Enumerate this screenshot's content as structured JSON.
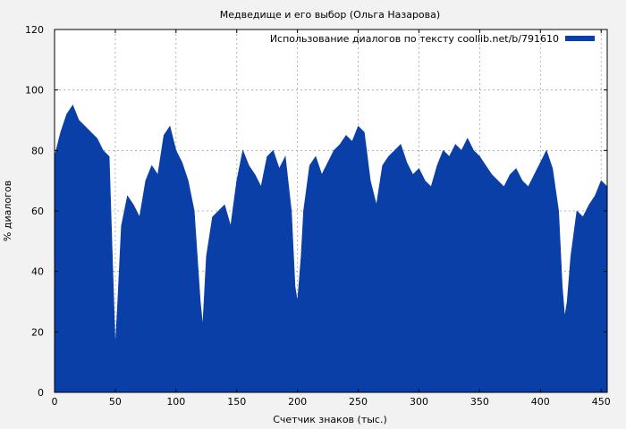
{
  "chart_data": {
    "type": "area",
    "title": "Медведище и его выбор (Ольга Назарова)",
    "xlabel": "Счетчик знаков (тыс.)",
    "ylabel": "% диалогов",
    "xlim": [
      0,
      455
    ],
    "ylim": [
      0,
      120
    ],
    "xticks": [
      0,
      50,
      100,
      150,
      200,
      250,
      300,
      350,
      400,
      450
    ],
    "yticks": [
      0,
      20,
      40,
      60,
      80,
      100,
      120
    ],
    "grid": true,
    "legend_position": "top-right",
    "series": [
      {
        "name": "Использование диалогов по тексту coollib.net/b/791610",
        "color": "#0a3fa8",
        "x": [
          0,
          5,
          10,
          15,
          20,
          25,
          30,
          35,
          40,
          45,
          48,
          50,
          52,
          55,
          60,
          65,
          70,
          75,
          80,
          85,
          90,
          95,
          100,
          105,
          110,
          115,
          120,
          122,
          125,
          130,
          135,
          140,
          145,
          150,
          155,
          160,
          165,
          170,
          175,
          180,
          185,
          190,
          195,
          198,
          200,
          203,
          205,
          210,
          215,
          220,
          225,
          230,
          235,
          240,
          245,
          250,
          255,
          260,
          265,
          270,
          275,
          280,
          285,
          290,
          295,
          300,
          305,
          310,
          315,
          320,
          325,
          330,
          335,
          340,
          345,
          350,
          355,
          360,
          365,
          370,
          375,
          380,
          385,
          390,
          395,
          400,
          405,
          410,
          415,
          418,
          420,
          422,
          425,
          430,
          435,
          440,
          445,
          450,
          455
        ],
        "y": [
          78,
          86,
          92,
          95,
          90,
          88,
          86,
          84,
          80,
          78,
          40,
          15,
          30,
          55,
          65,
          62,
          58,
          70,
          75,
          72,
          85,
          88,
          80,
          76,
          70,
          60,
          30,
          22,
          45,
          58,
          60,
          62,
          55,
          70,
          80,
          75,
          72,
          68,
          78,
          80,
          74,
          78,
          60,
          35,
          30,
          45,
          60,
          75,
          78,
          72,
          76,
          80,
          82,
          85,
          83,
          88,
          86,
          70,
          62,
          75,
          78,
          80,
          82,
          76,
          72,
          74,
          70,
          68,
          75,
          80,
          78,
          82,
          80,
          84,
          80,
          78,
          75,
          72,
          70,
          68,
          72,
          74,
          70,
          68,
          72,
          76,
          80,
          74,
          60,
          35,
          25,
          30,
          45,
          60,
          58,
          62,
          65,
          70,
          68
        ]
      }
    ]
  }
}
